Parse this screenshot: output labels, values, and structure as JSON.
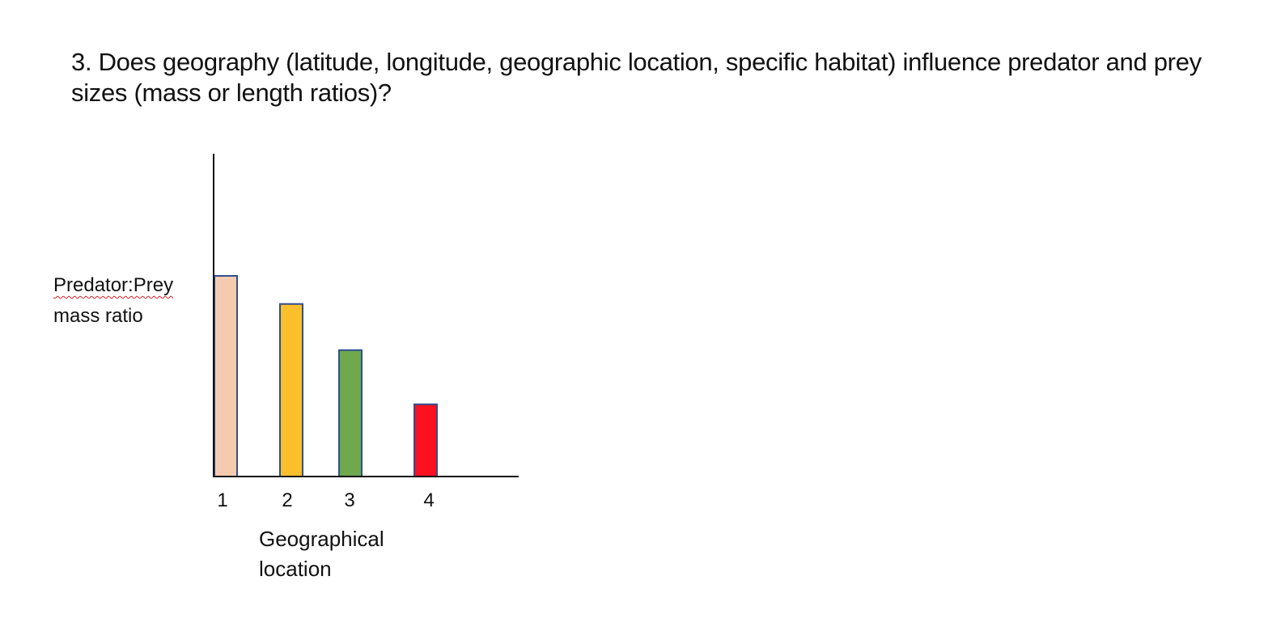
{
  "slide": {
    "title": "3. Does geography (latitude, longitude, geographic location, specific habitat) influence predator and prey sizes (mass or length ratios)?"
  },
  "chart_data": {
    "type": "bar",
    "categories": [
      "1",
      "2",
      "3",
      "4"
    ],
    "values": [
      100,
      86,
      63,
      36
    ],
    "colors": [
      "#f5cbaf",
      "#fbbf2d",
      "#6fa84d",
      "#fb1120"
    ],
    "bar_outline_color": "#2f4f8f",
    "ylabel_lines": [
      "Predator:Prey",
      "mass ratio"
    ],
    "xlabel_lines": [
      "Geographical",
      "location"
    ],
    "ylim": [
      0,
      130
    ],
    "grid": false,
    "legend": "none"
  }
}
